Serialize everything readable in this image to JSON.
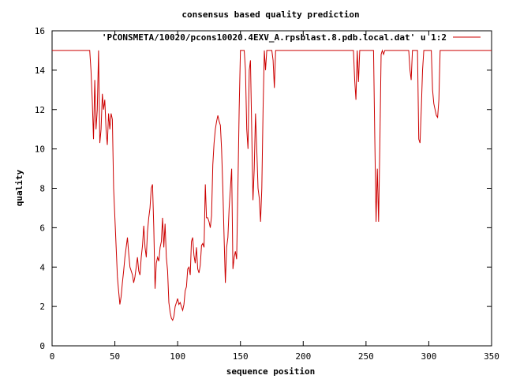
{
  "chart_data": {
    "type": "line",
    "title": "consensus based quality prediction",
    "xlabel": "sequence position",
    "ylabel": "quality",
    "xlim": [
      0,
      350
    ],
    "ylim": [
      0,
      16
    ],
    "xticks": [
      0,
      50,
      100,
      150,
      200,
      250,
      300,
      350
    ],
    "yticks": [
      0,
      2,
      4,
      6,
      8,
      10,
      12,
      14,
      16
    ],
    "grid": false,
    "legend_position": "top-right",
    "series": [
      {
        "name": "'PCONSMETA/10020/pcons10020.4EXV_A.rpsblast.8.pdb.local.dat' u 1:2",
        "color": "#cc0000",
        "points": [
          [
            0,
            15
          ],
          [
            30,
            15
          ],
          [
            31,
            14
          ],
          [
            32,
            12.5
          ],
          [
            33,
            10.5
          ],
          [
            34,
            13.5
          ],
          [
            35,
            11
          ],
          [
            36,
            12
          ],
          [
            37,
            15
          ],
          [
            38,
            10.3
          ],
          [
            39,
            11
          ],
          [
            40,
            12.8
          ],
          [
            41,
            12
          ],
          [
            42,
            12.5
          ],
          [
            43,
            11
          ],
          [
            44,
            10.2
          ],
          [
            45,
            11.8
          ],
          [
            46,
            11
          ],
          [
            47,
            11.8
          ],
          [
            48,
            11.5
          ],
          [
            49,
            8
          ],
          [
            50,
            6.5
          ],
          [
            51,
            5
          ],
          [
            52,
            3.5
          ],
          [
            53,
            2.8
          ],
          [
            54,
            2.1
          ],
          [
            55,
            2.5
          ],
          [
            56,
            3.2
          ],
          [
            57,
            3.8
          ],
          [
            58,
            4.5
          ],
          [
            59,
            5
          ],
          [
            60,
            5.5
          ],
          [
            61,
            4.7
          ],
          [
            62,
            4
          ],
          [
            63,
            3.8
          ],
          [
            64,
            3.6
          ],
          [
            65,
            3.2
          ],
          [
            66,
            3.5
          ],
          [
            67,
            4
          ],
          [
            68,
            4.5
          ],
          [
            69,
            3.8
          ],
          [
            70,
            3.6
          ],
          [
            71,
            4.5
          ],
          [
            72,
            5.1
          ],
          [
            73,
            6.1
          ],
          [
            74,
            5
          ],
          [
            75,
            4.5
          ],
          [
            76,
            5.8
          ],
          [
            77,
            6.5
          ],
          [
            78,
            7
          ],
          [
            79,
            8
          ],
          [
            80,
            8.2
          ],
          [
            81,
            6
          ],
          [
            82,
            2.9
          ],
          [
            83,
            4.2
          ],
          [
            84,
            4.5
          ],
          [
            85,
            4.3
          ],
          [
            86,
            5
          ],
          [
            87,
            5.3
          ],
          [
            88,
            6.5
          ],
          [
            89,
            5
          ],
          [
            90,
            6.2
          ],
          [
            91,
            4.5
          ],
          [
            92,
            3.8
          ],
          [
            93,
            2.2
          ],
          [
            94,
            1.7
          ],
          [
            95,
            1.4
          ],
          [
            96,
            1.3
          ],
          [
            97,
            1.5
          ],
          [
            98,
            2
          ],
          [
            99,
            2.2
          ],
          [
            100,
            2.4
          ],
          [
            101,
            2.1
          ],
          [
            102,
            2.2
          ],
          [
            103,
            2
          ],
          [
            104,
            1.8
          ],
          [
            105,
            2.1
          ],
          [
            106,
            2.8
          ],
          [
            107,
            3
          ],
          [
            108,
            3.9
          ],
          [
            109,
            4
          ],
          [
            110,
            3.6
          ],
          [
            111,
            5.3
          ],
          [
            112,
            5.5
          ],
          [
            113,
            4.6
          ],
          [
            114,
            4.2
          ],
          [
            115,
            5
          ],
          [
            116,
            3.9
          ],
          [
            117,
            3.7
          ],
          [
            118,
            4.1
          ],
          [
            119,
            5.1
          ],
          [
            120,
            5.2
          ],
          [
            121,
            5
          ],
          [
            122,
            8.2
          ],
          [
            123,
            6.5
          ],
          [
            124,
            6.5
          ],
          [
            125,
            6.3
          ],
          [
            126,
            6
          ],
          [
            127,
            6.6
          ],
          [
            128,
            9.2
          ],
          [
            129,
            10.3
          ],
          [
            130,
            11
          ],
          [
            131,
            11.4
          ],
          [
            132,
            11.7
          ],
          [
            133,
            11.4
          ],
          [
            134,
            11.2
          ],
          [
            135,
            10
          ],
          [
            136,
            8
          ],
          [
            137,
            5.5
          ],
          [
            138,
            3.2
          ],
          [
            139,
            5
          ],
          [
            140,
            5.5
          ],
          [
            141,
            7
          ],
          [
            142,
            8
          ],
          [
            143,
            9
          ],
          [
            144,
            3.9
          ],
          [
            145,
            4.5
          ],
          [
            146,
            4.8
          ],
          [
            147,
            4.4
          ],
          [
            148,
            8
          ],
          [
            149,
            12
          ],
          [
            150,
            15
          ],
          [
            151,
            15
          ],
          [
            152,
            15
          ],
          [
            153,
            15
          ],
          [
            154,
            14
          ],
          [
            155,
            11
          ],
          [
            156,
            10
          ],
          [
            157,
            14
          ],
          [
            158,
            14.5
          ],
          [
            159,
            11
          ],
          [
            160,
            7.4
          ],
          [
            161,
            9
          ],
          [
            162,
            11.8
          ],
          [
            163,
            10
          ],
          [
            164,
            8
          ],
          [
            165,
            7.5
          ],
          [
            166,
            6.3
          ],
          [
            167,
            8
          ],
          [
            168,
            12
          ],
          [
            169,
            15
          ],
          [
            170,
            14
          ],
          [
            171,
            15
          ],
          [
            175,
            15
          ],
          [
            176,
            14.5
          ],
          [
            177,
            13.1
          ],
          [
            178,
            15
          ],
          [
            240,
            15
          ],
          [
            241,
            13.5
          ],
          [
            242,
            12.5
          ],
          [
            243,
            15
          ],
          [
            244,
            13.4
          ],
          [
            245,
            15
          ],
          [
            256,
            15
          ],
          [
            257,
            10.5
          ],
          [
            258,
            6.3
          ],
          [
            259,
            9
          ],
          [
            260,
            6.3
          ],
          [
            261,
            10.2
          ],
          [
            262,
            14.8
          ],
          [
            263,
            15
          ],
          [
            264,
            14.8
          ],
          [
            265,
            15
          ],
          [
            284,
            15
          ],
          [
            285,
            14
          ],
          [
            286,
            13.5
          ],
          [
            287,
            15
          ],
          [
            291,
            15
          ],
          [
            292,
            10.5
          ],
          [
            293,
            10.3
          ],
          [
            294,
            12
          ],
          [
            295,
            14
          ],
          [
            296,
            15
          ],
          [
            302,
            15
          ],
          [
            303,
            13
          ],
          [
            304,
            12.3
          ],
          [
            305,
            12
          ],
          [
            306,
            11.7
          ],
          [
            307,
            11.6
          ],
          [
            308,
            12.5
          ],
          [
            309,
            15
          ],
          [
            350,
            15
          ]
        ]
      }
    ]
  }
}
